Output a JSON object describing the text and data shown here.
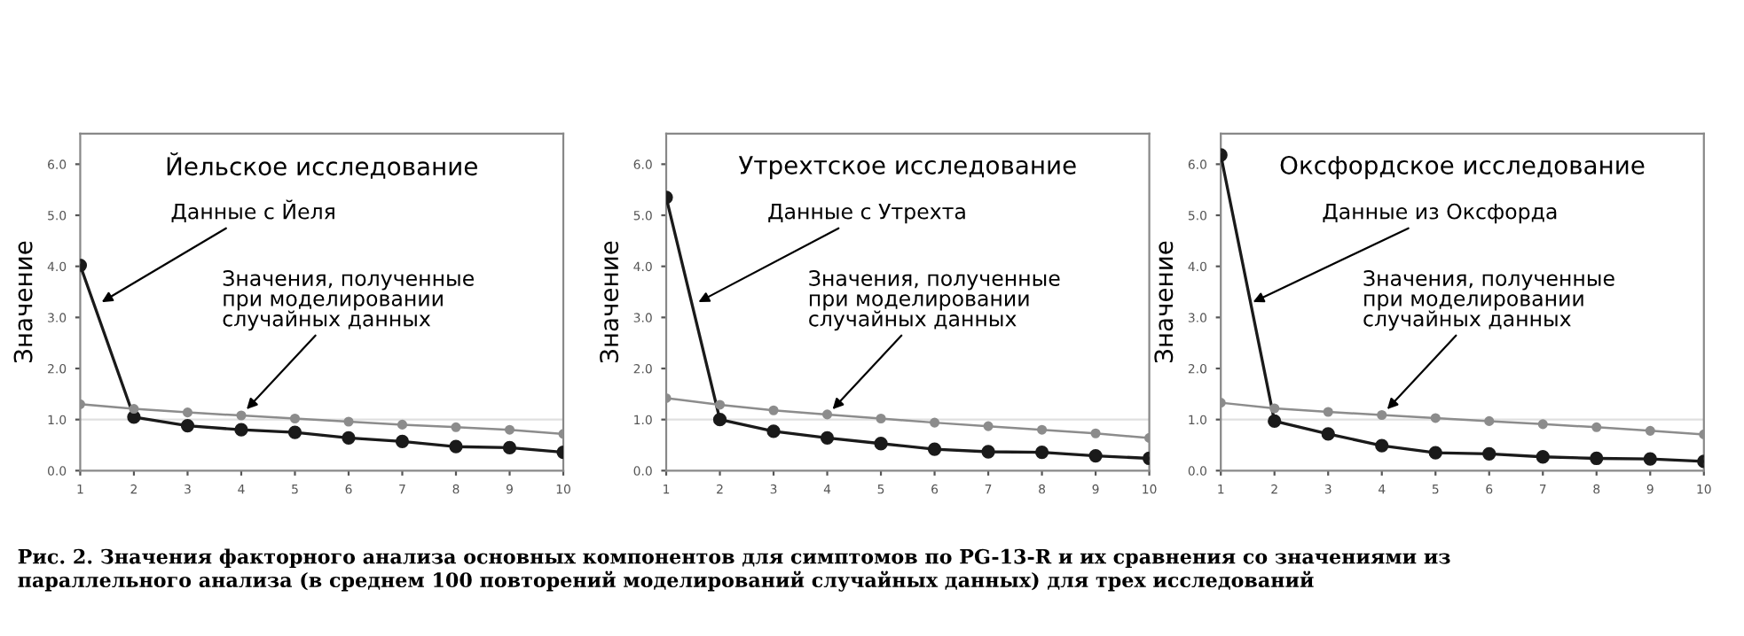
{
  "chart_data": [
    {
      "type": "line",
      "title": "Йельское исследование",
      "ylabel": "Значение",
      "x": [
        1,
        2,
        3,
        4,
        5,
        6,
        7,
        8,
        9,
        10
      ],
      "series": [
        {
          "color": "#1a1a1a",
          "marker": "circle",
          "values": [
            4.02,
            1.05,
            0.88,
            0.8,
            0.75,
            0.64,
            0.57,
            0.47,
            0.45,
            0.36
          ]
        },
        {
          "color": "#8c8c8c",
          "marker": "circle",
          "values": [
            1.3,
            1.21,
            1.14,
            1.08,
            1.02,
            0.96,
            0.9,
            0.85,
            0.8,
            0.72
          ]
        }
      ],
      "xlim": [
        1,
        10
      ],
      "xticks": [
        1,
        2,
        3,
        4,
        5,
        6,
        7,
        8,
        9,
        10
      ],
      "ylim": [
        0,
        6.6
      ],
      "yticks": [
        {
          "value": 0,
          "label": "0.0"
        },
        {
          "value": 1,
          "label": "1.0"
        },
        {
          "value": 2,
          "label": "2.0"
        },
        {
          "value": 3,
          "label": "3.0"
        },
        {
          "value": 4,
          "label": "4.0"
        },
        {
          "value": 5,
          "label": "5.0"
        },
        {
          "value": 6,
          "label": "6.0"
        }
      ],
      "ref_lines": [
        {
          "axis": "y",
          "value": 1.0,
          "color": "#e0e0e0"
        }
      ],
      "annotations": [
        {
          "text": "Данные с Йеля",
          "x": 1.4,
          "y": 3.3
        },
        {
          "text": "Значения, полученные\nпри моделировании\nслучайных данных",
          "x": 4.1,
          "y": 1.2
        },
        "Рис. 2. Значения факторного анализа основных компонентов для симптомов по PG-13-R и их сравнения со значениями из\nпараллельного анализа (в среднем 100 повторений моделирований случайных данных) для трех исследований"
      ]
    },
    {
      "type": "line",
      "title": "Утрехтское исследование",
      "ylabel": "Значение",
      "x": [
        1,
        2,
        3,
        4,
        5,
        6,
        7,
        8,
        9,
        10
      ],
      "series": [
        {
          "color": "#1a1a1a",
          "marker": "circle",
          "values": [
            5.35,
            1.0,
            0.77,
            0.64,
            0.53,
            0.42,
            0.37,
            0.36,
            0.29,
            0.24
          ]
        },
        {
          "color": "#8c8c8c",
          "marker": "circle",
          "values": [
            1.42,
            1.29,
            1.18,
            1.1,
            1.02,
            0.94,
            0.87,
            0.8,
            0.73,
            0.64
          ]
        }
      ],
      "xlim": [
        1,
        10
      ],
      "xticks": [
        1,
        2,
        3,
        4,
        5,
        6,
        7,
        8,
        9,
        10
      ],
      "ylim": [
        0,
        6.6
      ],
      "yticks": [
        {
          "value": 0,
          "label": "0.0"
        },
        {
          "value": 1,
          "label": "1.0"
        },
        {
          "value": 2,
          "label": "2.0"
        },
        {
          "value": 3,
          "label": "3.0"
        },
        {
          "value": 4,
          "label": "4.0"
        },
        {
          "value": 5,
          "label": "5.0"
        },
        {
          "value": 6,
          "label": "6.0"
        }
      ],
      "ref_lines": [
        {
          "axis": "y",
          "value": 1.0,
          "color": "#e0e0e0"
        }
      ],
      "annotations": [
        {
          "text": "Данные с Утрехта",
          "x": 1.6,
          "y": 3.3
        },
        {
          "text": "Значения, полученные\nпри моделировании\nслучайных данных",
          "x": 4.1,
          "y": 1.2
        }
      ]
    },
    {
      "type": "line",
      "title": "Оксфордское исследование",
      "ylabel": "Значение",
      "x": [
        1,
        2,
        3,
        4,
        5,
        6,
        7,
        8,
        9,
        10
      ],
      "series": [
        {
          "color": "#1a1a1a",
          "marker": "circle",
          "values": [
            6.18,
            0.97,
            0.72,
            0.49,
            0.35,
            0.33,
            0.27,
            0.24,
            0.23,
            0.18
          ]
        },
        {
          "color": "#8c8c8c",
          "marker": "circle",
          "values": [
            1.33,
            1.22,
            1.15,
            1.09,
            1.03,
            0.97,
            0.91,
            0.85,
            0.78,
            0.71
          ]
        }
      ],
      "xlim": [
        1,
        10
      ],
      "xticks": [
        1,
        2,
        3,
        4,
        5,
        6,
        7,
        8,
        9,
        10
      ],
      "ylim": [
        0,
        6.6
      ],
      "yticks": [
        {
          "value": 0,
          "label": "0.0"
        },
        {
          "value": 1,
          "label": "1.0"
        },
        {
          "value": 2,
          "label": "2.0"
        },
        {
          "value": 3,
          "label": "3.0"
        },
        {
          "value": 4,
          "label": "4.0"
        },
        {
          "value": 5,
          "label": "5.0"
        },
        {
          "value": 6,
          "label": "6.0"
        }
      ],
      "ref_lines": [
        {
          "axis": "y",
          "value": 1.0,
          "color": "#e0e0e0"
        }
      ],
      "annotations": [
        {
          "text": "Данные из Оксфорда",
          "x": 1.6,
          "y": 3.3
        },
        {
          "text": "Значения, полученные\nпри моделировании\nслучайных данных",
          "x": 4.1,
          "y": 1.2
        }
      ]
    }
  ]
}
